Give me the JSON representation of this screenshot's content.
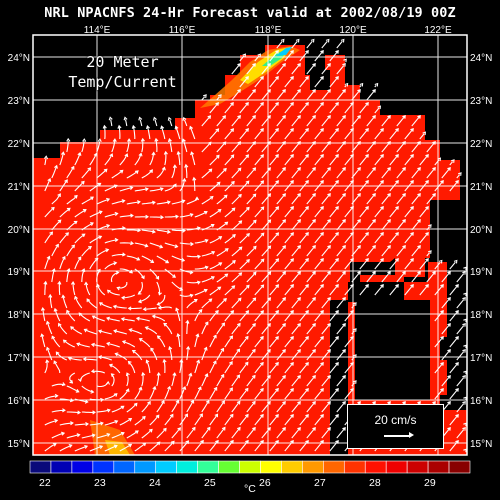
{
  "title": "NRL NPACNFS 24-Hr Forecast valid at 2002/08/19 00Z",
  "inset_title": [
    "20 Meter",
    "Temp/Current"
  ],
  "scale": {
    "label": "20 cm/s"
  },
  "lon_labels": [
    "114°E",
    "116°E",
    "118°E",
    "120°E",
    "122°E"
  ],
  "lat_labels": [
    "24°N",
    "23°N",
    "22°N",
    "21°N",
    "20°N",
    "19°N",
    "18°N",
    "17°N",
    "16°N",
    "15°N"
  ],
  "colorbar": {
    "ticks": [
      "22",
      "23",
      "24",
      "25",
      "26",
      "27",
      "28",
      "29"
    ],
    "unit": "°C",
    "colors": [
      "#0a0a7a",
      "#0000b4",
      "#0000e6",
      "#0033ff",
      "#0066ff",
      "#0099ff",
      "#00ccff",
      "#00eedd",
      "#33ff99",
      "#66ff33",
      "#ccff00",
      "#ffff00",
      "#ffcc00",
      "#ff9900",
      "#ff6600",
      "#ff3300",
      "#ff1100",
      "#ee0000",
      "#cc0000",
      "#aa0000",
      "#880000"
    ]
  },
  "colors": {
    "sea_base": "#ff1a00",
    "land": "#000000",
    "grid": "#ffffff"
  }
}
